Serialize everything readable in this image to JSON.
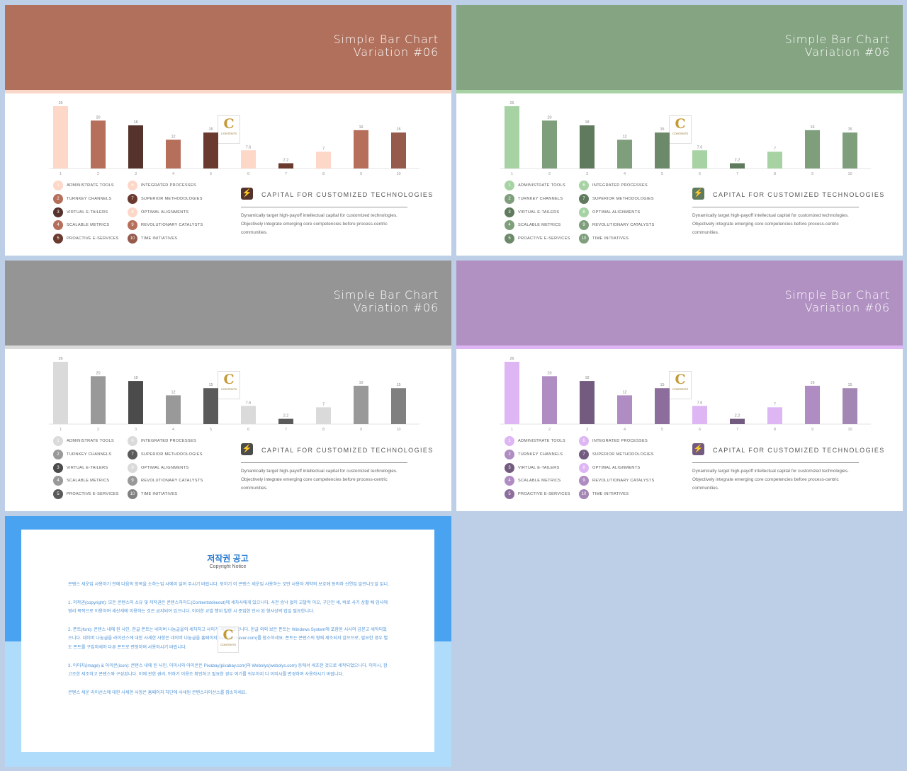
{
  "slides": [
    {
      "title_line1": "Simple Bar Chart",
      "title_line2": "Variation #06",
      "header_color": "#b1705b",
      "band_color": "#f9d7c9",
      "bar_colors": [
        "#fdd7c7",
        "#b56f5b",
        "#55332c",
        "#b56f5b",
        "#6b3a2f",
        "#fdd7c7",
        "#6b3a2f",
        "#fdd7c7",
        "#b56f5b",
        "#955a4b"
      ]
    },
    {
      "title_line1": "Simple Bar Chart",
      "title_line2": "Variation #06",
      "header_color": "#84a482",
      "band_color": "#a7d3a4",
      "bar_colors": [
        "#a7d3a4",
        "#7f9f7c",
        "#5f7a5d",
        "#7f9f7c",
        "#6c8a6a",
        "#a7d3a4",
        "#5f7a5d",
        "#a7d3a4",
        "#7f9f7c",
        "#7f9f7c"
      ]
    },
    {
      "title_line1": "Simple Bar Chart",
      "title_line2": "Variation #06",
      "header_color": "#959595",
      "band_color": "#dadada",
      "bar_colors": [
        "#dadada",
        "#999999",
        "#4b4b4b",
        "#999999",
        "#5a5a5a",
        "#dadada",
        "#5a5a5a",
        "#dadada",
        "#999999",
        "#808080"
      ]
    },
    {
      "title_line1": "Simple Bar Chart",
      "title_line2": "Variation #06",
      "header_color": "#b191c2",
      "band_color": "#ddb6f3",
      "bar_colors": [
        "#ddb6f3",
        "#af8cc1",
        "#735b80",
        "#af8cc1",
        "#8c6d9c",
        "#ddb6f3",
        "#735b80",
        "#ddb6f3",
        "#af8cc1",
        "#a386b3"
      ]
    }
  ],
  "chart_data": {
    "type": "bar",
    "categories": [
      "1",
      "2",
      "3",
      "4",
      "5",
      "6",
      "7",
      "8",
      "9",
      "10"
    ],
    "values": [
      26,
      20,
      18,
      12,
      15,
      7.6,
      2.2,
      7,
      16,
      15
    ],
    "value_labels": [
      "26",
      "20",
      "18",
      "12",
      "15",
      "7.6",
      "2.2",
      "7",
      "16",
      "15"
    ],
    "ylim": [
      0,
      26
    ],
    "grid": false,
    "title": "",
    "xlabel": "",
    "ylabel": ""
  },
  "legend": [
    {
      "num": "1",
      "label": "ADMINISTRATE TOOLS"
    },
    {
      "num": "2",
      "label": "TURNKEY CHANNELS"
    },
    {
      "num": "3",
      "label": "VIRTUAL E-TAILERS"
    },
    {
      "num": "4",
      "label": "SCALABLE METRICS"
    },
    {
      "num": "5",
      "label": "PROACTIVE E-SERVICES"
    },
    {
      "num": "6",
      "label": "INTEGRATED PROCESSES"
    },
    {
      "num": "7",
      "label": "SUPERIOR METHODOLOGIES"
    },
    {
      "num": "8",
      "label": "OPTIMAL ALIGNMENTS"
    },
    {
      "num": "9",
      "label": "REVOLUTIONARY CATALYSTS"
    },
    {
      "num": "10",
      "label": "TIME INITIATIVES"
    }
  ],
  "info": {
    "icon": "power-plug-icon",
    "title": "CAPITAL  FOR  CUSTOMIZED  TECHNOLOGIES",
    "body": "Dynamically target high-payoff intellectual capital for customized technologies. Objectively integrate emerging core competencies before process-centric communities."
  },
  "logo": {
    "letter": "C",
    "text": "CONTENTS"
  },
  "notice": {
    "title": "저작권 공고",
    "subtitle": "Copyright Notice",
    "paragraphs": [
      "콘텐스 세운입 사용하기 전에 다음의 항목을 소하는입 사에이 읽어 주시기 바랍니다. 뒤하기 이 콘텐스 세운입 사용하는 것만 사용자 계약의 보호에 동의하 선연임 알린니도알 읽니.",
      "1. 저작권(copyright): 모든 콘텐스의 소유 및 저작권은 콘텐스하이드(Contentstokeout)에 세차사에게 있으니다. 사전 승낙 없이 교발적 이오, 구단전 세, 바로 사기 상활 배 임사에 영리 목적으로 이용하여 세산세에 이용하는 것은 금지되어 있으니다. 이러한 교발 행위 발한 시 준업한 민사 된 형사상의 법일 필요한니다.",
      "2. 폰트(font): 콘텐스 내에 된 사인, 한글 폰트는 네이버 나눔글을의 세차하고 사이가 세작되었으니다. 한글 외외 보든 폰트는 Windows System에 포함된 시사의 금본고 세작되었으니다. 네이버 나눔글을 라이선스에 대한 사세한 사항은 네이버 나눔글을 홈페이지(hangeul.naver.com)를 참소하세요. 폰트는 콘텐스의 형에 세조되지 않으므로, 필요한 경우 별도 폰트를 구입하세야 다른 폰트로 변형하여 사용하시기 바랍니다.",
      "3. 이미지(image) & 아이콘(icon): 콘텐스 내에 된 사인, 이미시와 아이콘은 Pixabay(pixabay.com)와 Webolys(webolys.com) 등에서 세조한 것으로 세작되었으니다. 이미시, 팜고조한 세조하고 콘텐스와 구성된니다. 이에 관한 권리, 뒤하기 이용조 확인하고 필요한 경우 여기를 쉬우하지 다 이미시를 변경하여 사용하시기 바랍니다.",
      "콘텐스 세운 라이선스에 대한 사세한 사항은 홈페이지 하단에 사세된 콘텐스라이선스를 참소하세요."
    ]
  }
}
